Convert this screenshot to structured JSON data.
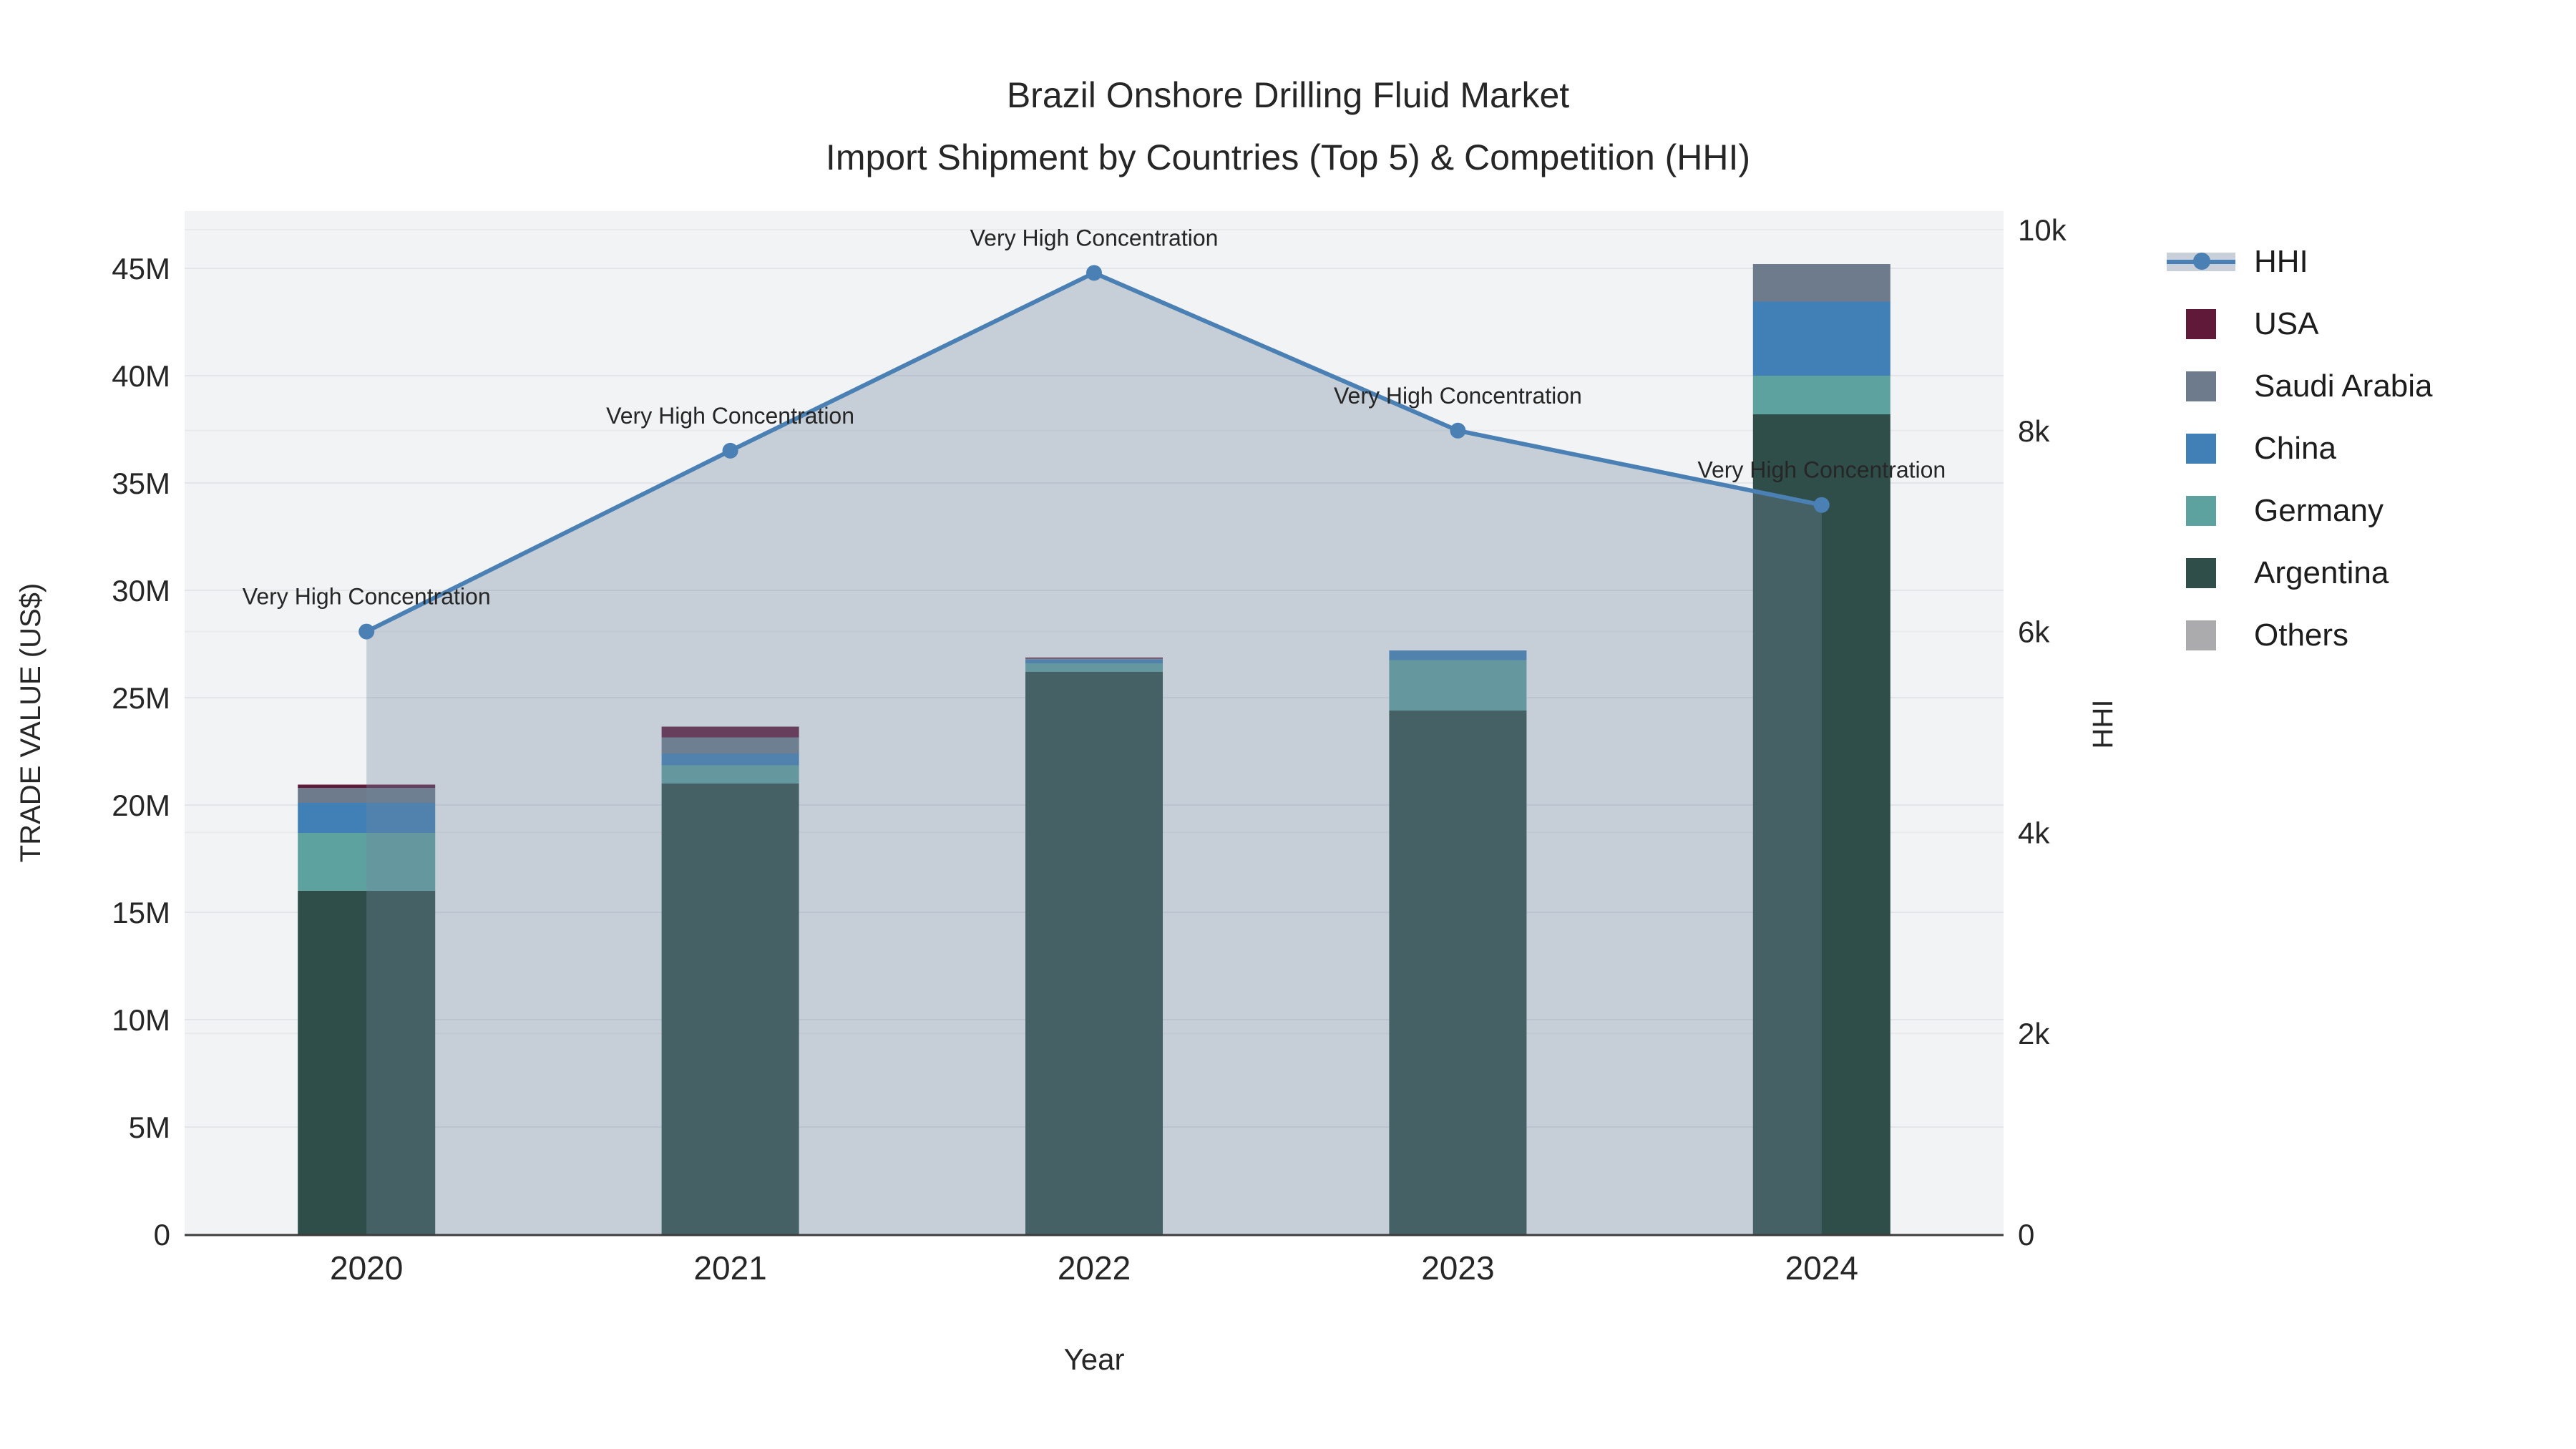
{
  "chart_data": {
    "type": "bar+line",
    "title": "Brazil Onshore Drilling Fluid Market",
    "subtitle": "Import Shipment by Countries (Top 5) & Competition (HHI)",
    "categories": [
      "2020",
      "2021",
      "2022",
      "2023",
      "2024"
    ],
    "xlabel": "Year",
    "ylabel": "TRADE VALUE (US$)",
    "y2label": "HHI",
    "bar_unit": "US$ million",
    "ylim_musd": [
      0,
      45
    ],
    "y2lim": [
      0,
      10000
    ],
    "ytick_labels": [
      "0",
      "5M",
      "10M",
      "15M",
      "20M",
      "25M",
      "30M",
      "35M",
      "40M",
      "45M"
    ],
    "y2tick_labels": [
      "0",
      "2k",
      "4k",
      "6k",
      "8k",
      "10k"
    ],
    "grid": true,
    "legend_position": "right",
    "plot_bg": "#f2f3f4",
    "grid_color": "#e3e5e8",
    "grid_color_right": "#e9eaec",
    "axis_line_color": "#3d3d3d",
    "stack_order": [
      "Argentina",
      "Germany",
      "China",
      "Saudi Arabia",
      "USA",
      "Others"
    ],
    "bar_series": [
      {
        "name": "USA",
        "color": "#61193a",
        "values_musd": [
          0.15,
          0.5,
          0.05,
          0,
          0
        ]
      },
      {
        "name": "Saudi Arabia",
        "color": "#6e7b8c",
        "values_musd": [
          0.7,
          0.75,
          0.05,
          0,
          1.75
        ]
      },
      {
        "name": "China",
        "color": "#4080b6",
        "values_musd": [
          1.4,
          0.55,
          0.17,
          0.45,
          3.45
        ]
      },
      {
        "name": "Germany",
        "color": "#5da29e",
        "values_musd": [
          2.7,
          0.85,
          0.4,
          2.35,
          1.8
        ]
      },
      {
        "name": "Argentina",
        "color": "#2f4e49",
        "values_musd": [
          16.0,
          21.0,
          26.2,
          24.4,
          38.2
        ]
      },
      {
        "name": "Others",
        "color": "#ababad",
        "values_musd": [
          0,
          0,
          0,
          0,
          0
        ]
      }
    ],
    "hhi_line": {
      "name": "HHI",
      "axis": "right",
      "color": "#4a80b4",
      "area_fill": "rgba(114,134,158,0.34)",
      "legend_band": "#c9d0da",
      "values": [
        6000,
        7800,
        9570,
        8000,
        7260
      ],
      "fill": "tozeroy",
      "annotations": [
        "Very High Concentration",
        "Very High Concentration",
        "Very High Concentration",
        "Very High Concentration",
        "Very High Concentration"
      ]
    }
  }
}
